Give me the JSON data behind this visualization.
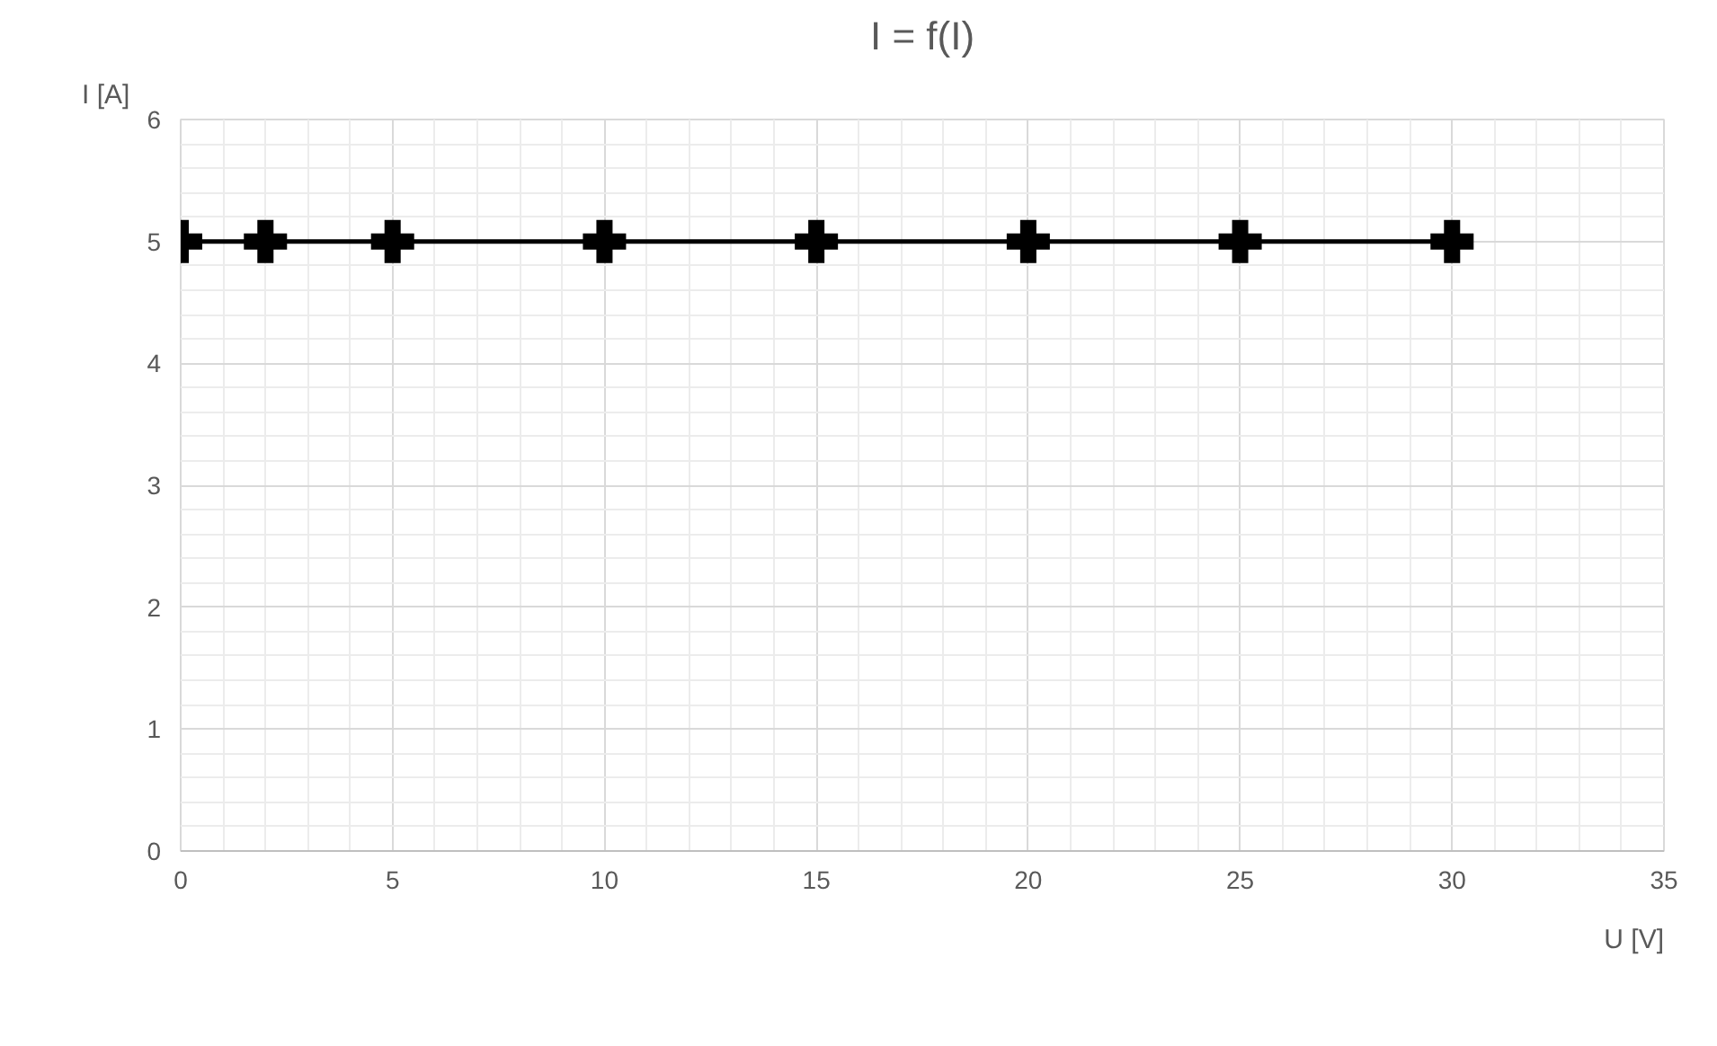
{
  "chart_data": {
    "type": "line",
    "title": "I = f(I)",
    "xlabel": "U [V]",
    "ylabel": "I [A]",
    "x": [
      0,
      2,
      5,
      10,
      15,
      20,
      25,
      30
    ],
    "series": [
      {
        "color": "#000000",
        "values": [
          5,
          5,
          5,
          5,
          5,
          5,
          5,
          5
        ]
      }
    ],
    "xlim": [
      0,
      35
    ],
    "xticks": [
      0,
      5,
      10,
      15,
      20,
      25,
      30,
      35
    ],
    "ylim": [
      0,
      6
    ],
    "yticks": [
      0,
      1,
      2,
      3,
      4,
      5,
      6
    ],
    "grid": true,
    "marker": "cross",
    "line_style": "solid"
  }
}
